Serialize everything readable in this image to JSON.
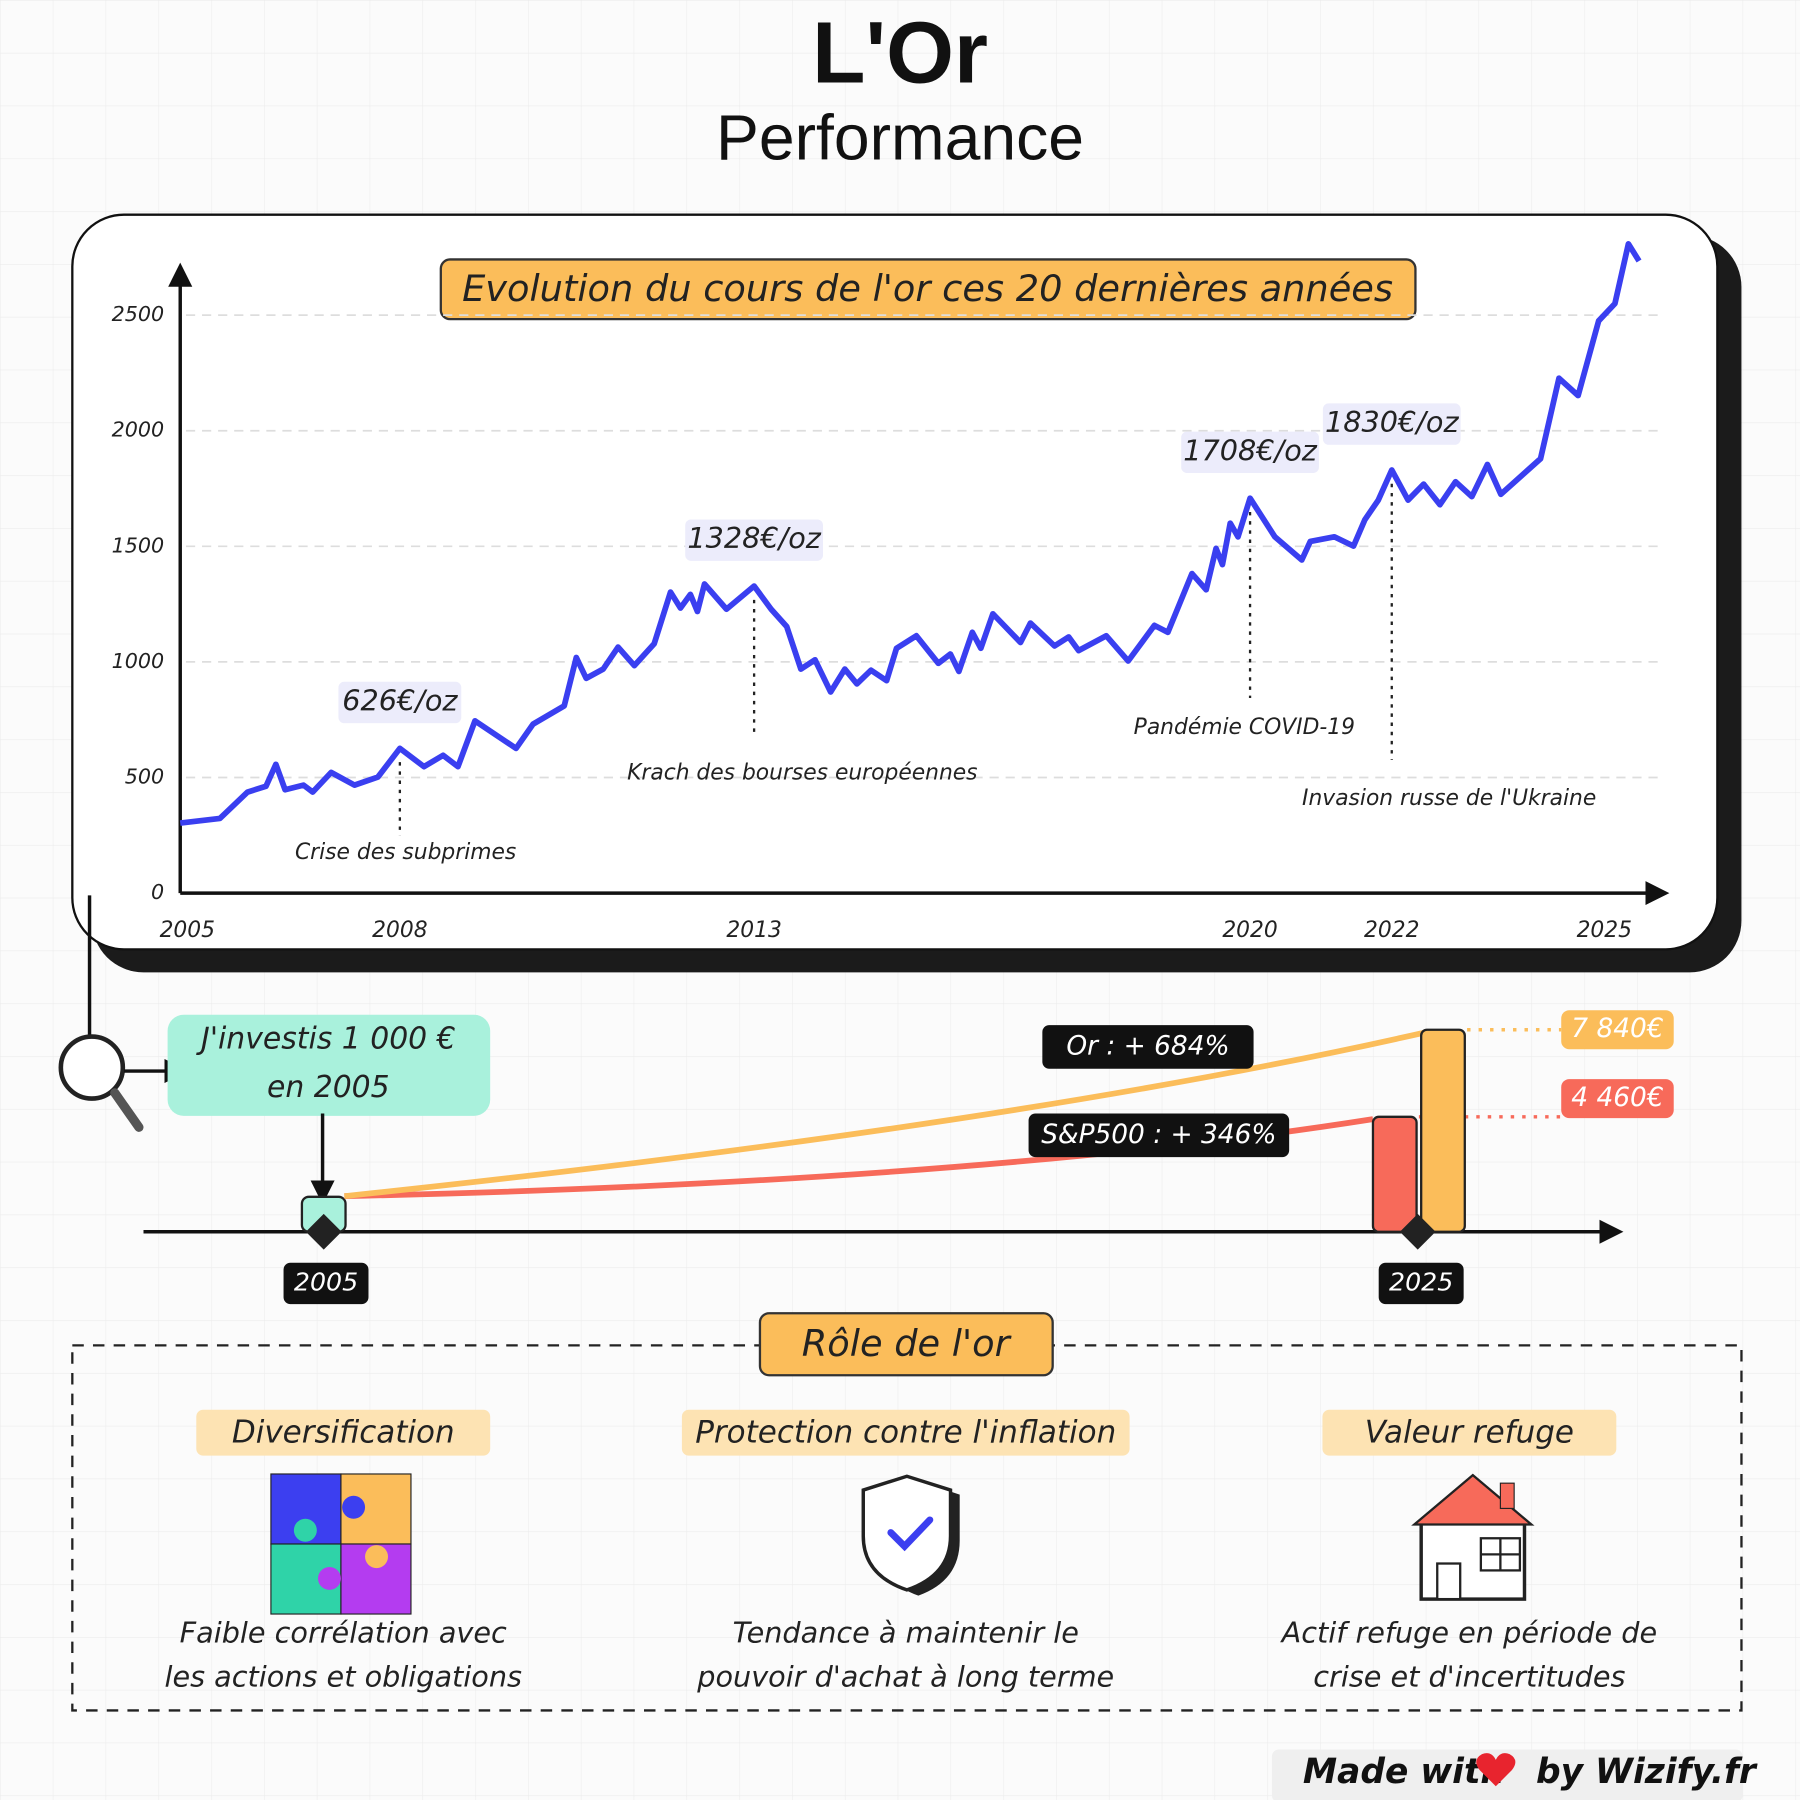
{
  "title": "L'Or",
  "subtitle": "Performance",
  "chart_data": {
    "type": "line",
    "title": "Evolution du cours de l'or ces 20 dernières années",
    "x": [
      2004.9,
      2005.46,
      2005.85,
      2006.11,
      2006.25,
      2006.38,
      2006.64,
      2006.77,
      2007.03,
      2007.36,
      2007.69,
      2008.0,
      2008.34,
      2008.61,
      2008.82,
      2009.06,
      2009.64,
      2009.88,
      2010.32,
      2010.49,
      2010.63,
      2010.87,
      2011.08,
      2011.31,
      2011.59,
      2011.82,
      2011.96,
      2012.1,
      2012.2,
      2012.3,
      2012.61,
      2013.0,
      2013.24,
      2013.46,
      2013.66,
      2013.86,
      2014.08,
      2014.28,
      2014.45,
      2014.65,
      2014.87,
      2015.01,
      2015.29,
      2015.6,
      2015.77,
      2015.89,
      2016.08,
      2016.2,
      2016.37,
      2016.76,
      2016.9,
      2017.24,
      2017.44,
      2017.58,
      2017.97,
      2018.28,
      2018.65,
      2018.84,
      2019.18,
      2019.38,
      2019.52,
      2019.61,
      2019.72,
      2019.83,
      2020.0,
      2020.35,
      2020.73,
      2020.85,
      2021.19,
      2021.46,
      2021.62,
      2021.81,
      2022.0,
      2022.23,
      2022.45,
      2022.68,
      2022.9,
      2023.13,
      2023.35,
      2023.54,
      2024.1,
      2024.36,
      2024.63,
      2024.92,
      2025.15,
      2025.34,
      2025.49
    ],
    "series": [
      {
        "name": "Or",
        "color": "#3a3ff0",
        "values": [
          303,
          323,
          437,
          462,
          557,
          447,
          467,
          437,
          522,
          467,
          502,
          626,
          547,
          596,
          547,
          745,
          626,
          731,
          810,
          1019,
          929,
          969,
          1064,
          984,
          1079,
          1302,
          1233,
          1292,
          1218,
          1337,
          1228,
          1328,
          1228,
          1153,
          969,
          1009,
          870,
          969,
          905,
          964,
          919,
          1059,
          1113,
          994,
          1034,
          959,
          1128,
          1059,
          1208,
          1084,
          1168,
          1069,
          1108,
          1049,
          1113,
          1004,
          1158,
          1128,
          1382,
          1312,
          1491,
          1421,
          1600,
          1541,
          1708,
          1541,
          1441,
          1521,
          1541,
          1501,
          1615,
          1700,
          1830,
          1700,
          1769,
          1680,
          1779,
          1715,
          1854,
          1725,
          1879,
          2227,
          2152,
          2475,
          2550,
          2808,
          2734
        ]
      }
    ],
    "xlim": [
      2004.9,
      2025.85
    ],
    "xticks": [
      2005,
      2008,
      2013,
      2020,
      2022,
      2025
    ],
    "ylim": [
      0,
      2850
    ],
    "yticks": [
      0,
      500,
      1000,
      1500,
      2000,
      2500
    ],
    "grid": true,
    "annotations": [
      {
        "x": 2008.0,
        "label": "626€/oz",
        "event": "Crise des subprimes"
      },
      {
        "x": 2013.0,
        "label": "1328€/oz",
        "event": "Krach des bourses européennes"
      },
      {
        "x": 2020.0,
        "label": "1708€/oz",
        "event": "Pandémie COVID-19"
      },
      {
        "x": 2022.0,
        "label": "1830€/oz",
        "event": "Invasion russe de l'Ukraine"
      }
    ]
  },
  "investment": {
    "start_label": [
      "J'investis 1 000 €",
      "en 2005"
    ],
    "start_value": 1000,
    "start_year": "2005",
    "end_year": "2025",
    "results": [
      {
        "name": "S&P500",
        "label": "S&P500 : + 346%",
        "value": 4460,
        "value_label": "4 460€",
        "color": "#f76a5a"
      },
      {
        "name": "Or",
        "label": "Or : + 684%",
        "value": 7840,
        "value_label": "7 840€",
        "color": "#fbbd5a"
      }
    ]
  },
  "role": {
    "title": "Rôle de l'or",
    "items": [
      {
        "title": "Diversification",
        "text": [
          "Faible corrélation avec",
          "les actions et obligations"
        ]
      },
      {
        "title": "Protection contre l'inflation",
        "text": [
          "Tendance à maintenir le",
          "pouvoir d'achat à long terme"
        ]
      },
      {
        "title": "Valeur refuge",
        "text": [
          "Actif refuge en période de",
          "crise et d'incertitudes"
        ]
      }
    ]
  },
  "footer": {
    "made": "Made with",
    "by": "by Wizify.fr"
  }
}
